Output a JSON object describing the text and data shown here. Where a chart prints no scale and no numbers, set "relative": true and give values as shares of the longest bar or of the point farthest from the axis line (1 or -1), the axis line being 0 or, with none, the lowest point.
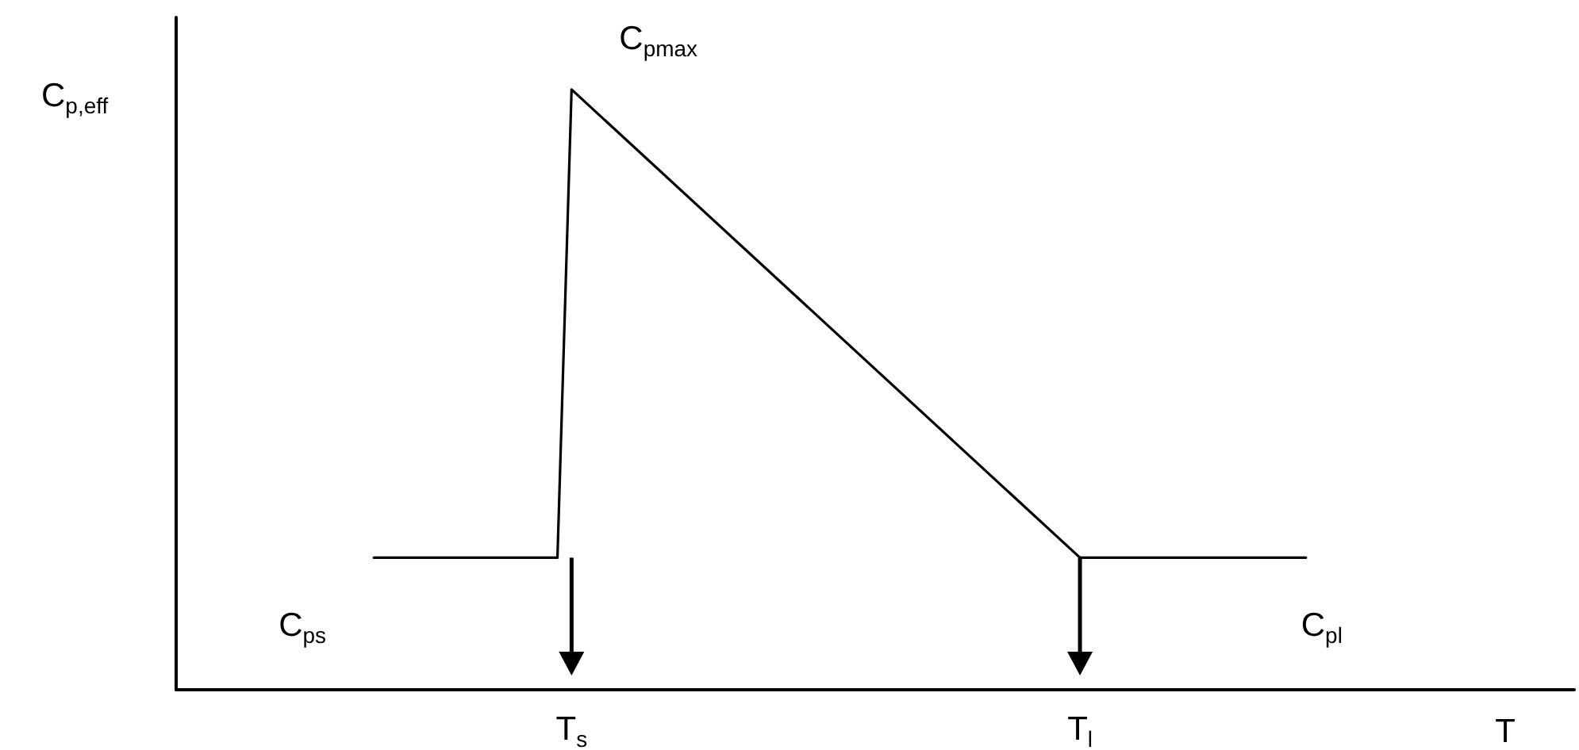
{
  "chart_data": {
    "type": "line",
    "relative": true,
    "xlabel": "T",
    "ylabel": "C$_{p,eff}$",
    "categories": [
      null,
      null,
      null,
      null,
      null,
      null,
      null,
      null,
      null,
      null,
      null,
      null,
      null,
      null,
      null,
      null,
      null,
      null,
      null,
      null,
      null,
      null,
      null,
      null,
      null,
      null,
      null,
      null,
      "T$_{s}$",
      null,
      null,
      null,
      null,
      null,
      null,
      null,
      null,
      null,
      null,
      null,
      null,
      null,
      null,
      null,
      null,
      null,
      null,
      null,
      null,
      null,
      null,
      null,
      null,
      null,
      null,
      null,
      null,
      null,
      null,
      null,
      null,
      null,
      null,
      null,
      "T$_{l}$",
      null,
      null,
      null,
      null,
      null,
      null,
      null,
      null,
      null,
      null,
      null,
      null,
      null,
      null,
      null,
      null,
      null,
      null,
      null,
      null,
      null,
      null,
      null,
      null,
      null,
      null,
      null,
      null,
      null,
      null,
      null,
      null,
      null,
      null,
      null
    ],
    "series": [
      {
        "color": "#000000",
        "values": [
          null,
          null,
          null,
          null,
          null,
          null,
          null,
          null,
          null,
          null,
          null,
          null,
          null,
          null,
          0.22,
          null,
          null,
          null,
          null,
          null,
          null,
          null,
          null,
          null,
          null,
          null,
          null,
          0.22,
          1,
          null,
          null,
          null,
          null,
          null,
          null,
          null,
          null,
          null,
          null,
          null,
          null,
          null,
          null,
          null,
          null,
          null,
          null,
          null,
          null,
          null,
          null,
          null,
          null,
          null,
          null,
          null,
          null,
          null,
          null,
          null,
          null,
          null,
          null,
          null,
          0.22,
          null,
          null,
          null,
          null,
          null,
          null,
          null,
          null,
          null,
          null,
          null,
          null,
          null,
          null,
          null,
          0.22,
          null,
          null,
          null,
          null,
          null,
          null,
          null,
          null,
          null,
          null,
          null,
          null,
          null,
          null,
          null,
          null,
          null,
          null,
          null
        ]
      }
    ],
    "annotations": [
      {
        "text": "C$_{pmax}$",
        "x": "T$_{s}$",
        "y": 1
      },
      "C$_{ps}$",
      "C$_{pl}$"
    ],
    "grid": false,
    "marker": "none",
    "line_style": "solid"
  }
}
